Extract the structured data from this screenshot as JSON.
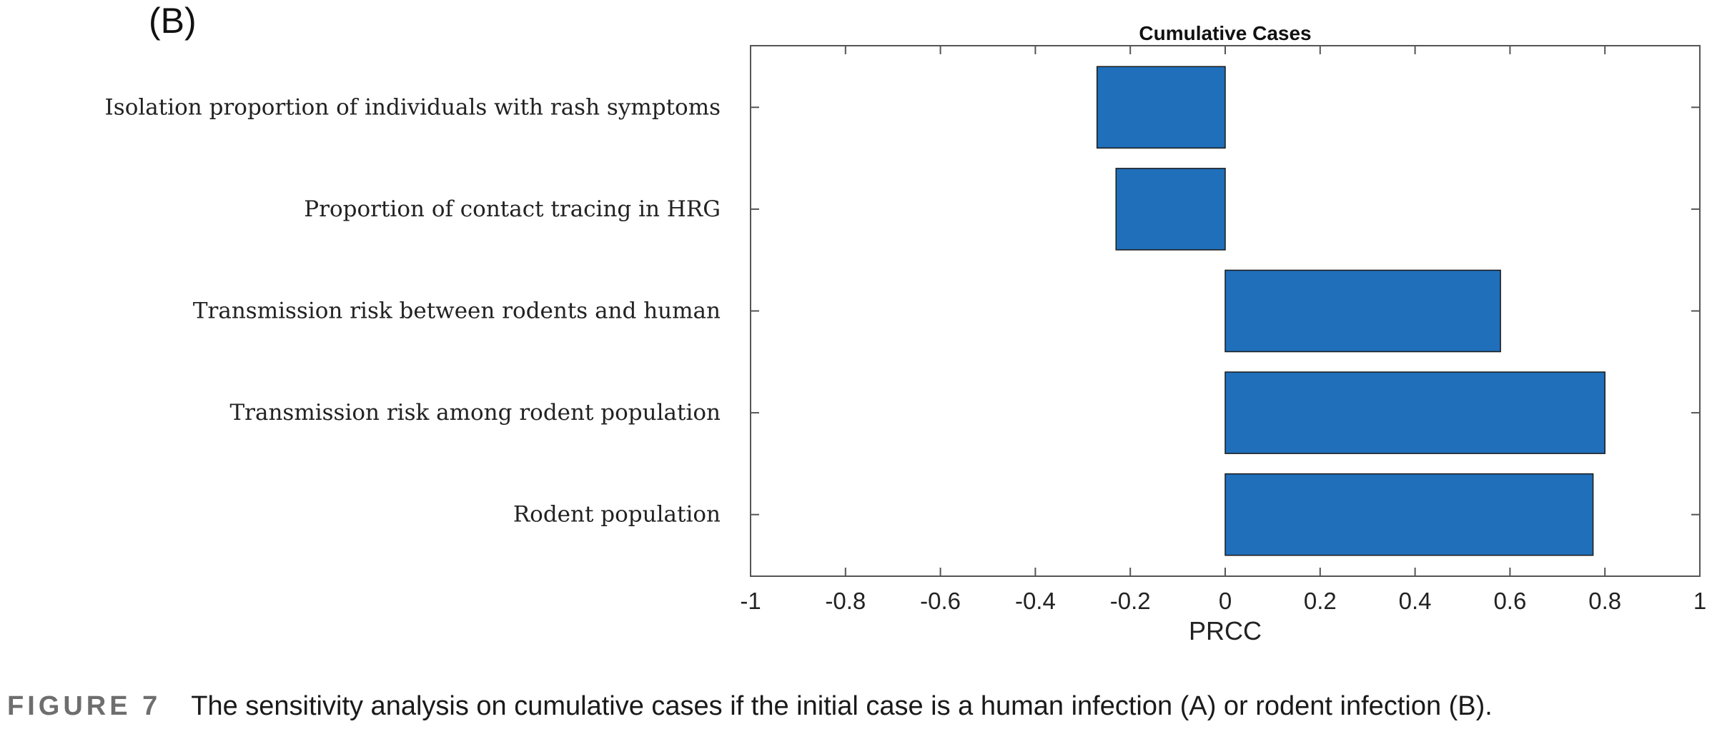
{
  "panel_label": "(B)",
  "caption": {
    "figure_number": "FIGURE 7",
    "text": "The sensitivity analysis on cumulative cases if the initial case is a human infection (A) or rodent infection (B)."
  },
  "chart_data": {
    "type": "bar",
    "orientation": "horizontal",
    "title": "Cumulative Cases",
    "xlabel": "PRCC",
    "ylabel": "",
    "xlim": [
      -1,
      1
    ],
    "xticks": [
      "-1",
      "-0.8",
      "-0.6",
      "-0.4",
      "-0.2",
      "0",
      "0.2",
      "0.4",
      "0.6",
      "0.8",
      "1"
    ],
    "grid": false,
    "bar_color": "#1f6fba",
    "categories": [
      "Isolation proportion of individuals with rash symptoms",
      "Proportion of contact tracing in HRG",
      "Transmission risk between rodents and human",
      "Transmission risk among rodent population",
      "Rodent population"
    ],
    "values": [
      -0.27,
      -0.23,
      0.58,
      0.8,
      0.775
    ]
  }
}
